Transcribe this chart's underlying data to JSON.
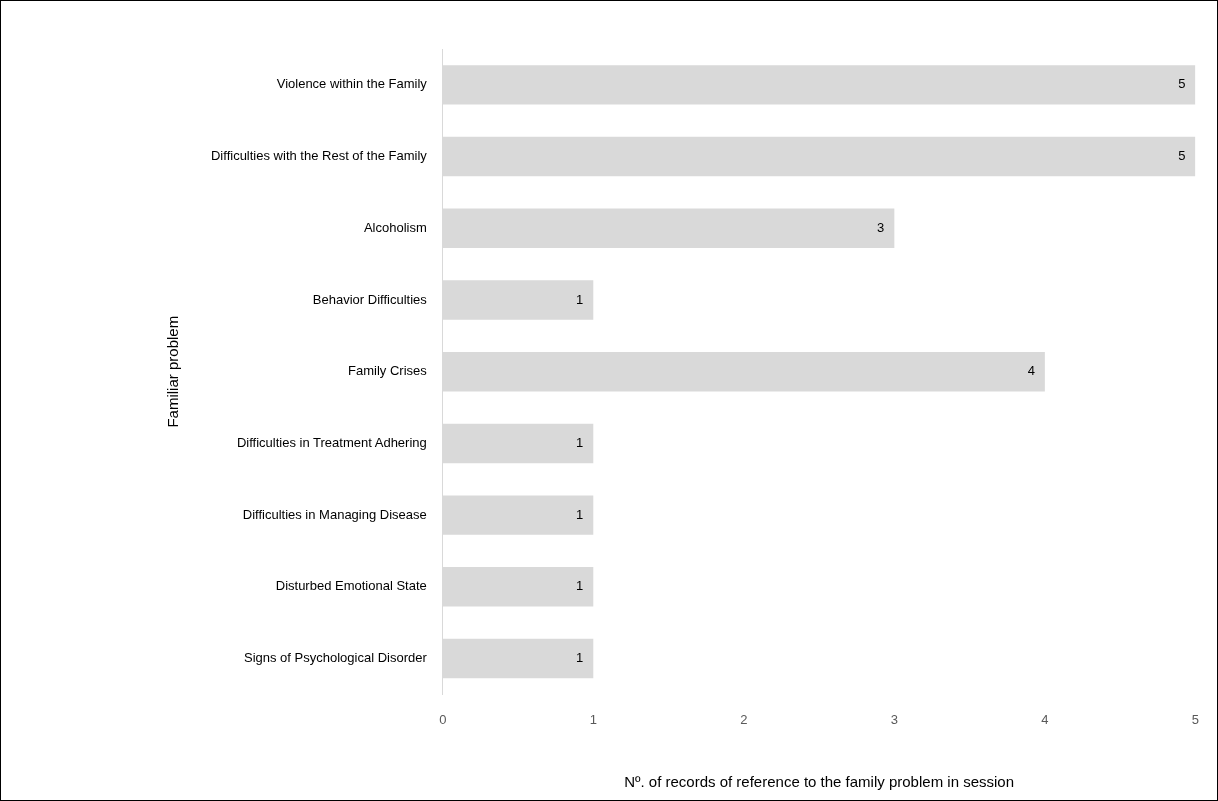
{
  "chart_data": {
    "type": "bar",
    "orientation": "horizontal",
    "categories": [
      "Violence within the Family",
      "Difficulties with the Rest of the Family",
      "Alcoholism",
      "Behavior Difficulties",
      "Family Crises",
      "Difficulties in Treatment Adhering",
      "Difficulties in Managing Disease",
      "Disturbed Emotional State",
      "Signs of Psychological Disorder"
    ],
    "values": [
      5,
      5,
      3,
      1,
      4,
      1,
      1,
      1,
      1
    ],
    "color": "#d9d9d9",
    "xlim": [
      0,
      5
    ],
    "xticks": [
      0,
      1,
      2,
      3,
      4,
      5
    ],
    "xlabel": "Nº. of records of reference to the family problem in session",
    "ylabel": "Familiar problem",
    "grid": false,
    "legend": false,
    "data_labels": true
  }
}
